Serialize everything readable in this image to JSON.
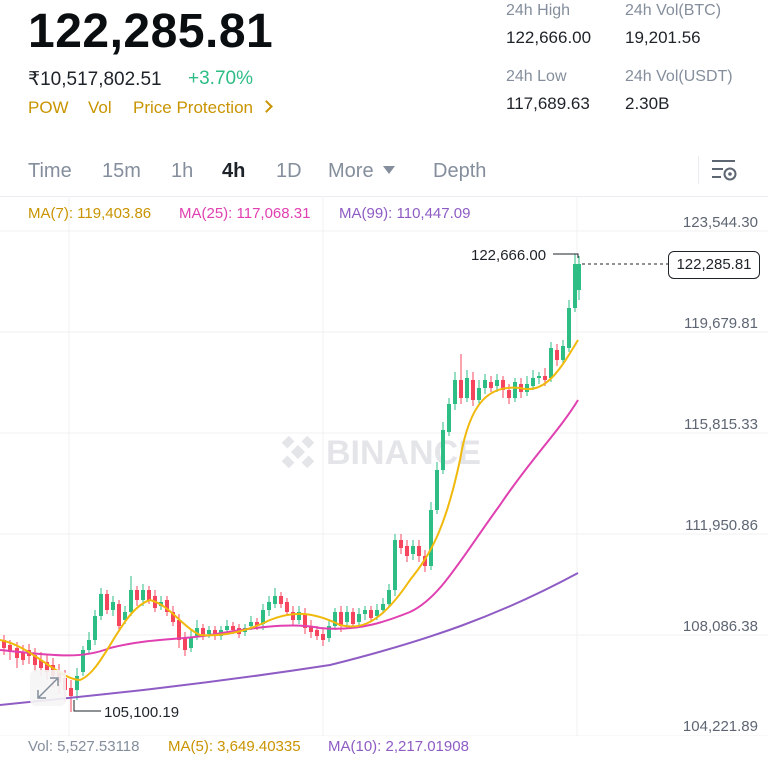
{
  "header": {
    "last_price": "122,285.81",
    "inr_price": "₹10,517,802.51",
    "change_pct": "+3.70%",
    "tags": [
      "POW",
      "Vol",
      "Price Protection"
    ]
  },
  "stats": {
    "high_label": "24h High",
    "high_value": "122,666.00",
    "vol_btc_label": "24h Vol(BTC)",
    "vol_btc_value": "19,201.56",
    "low_label": "24h Low",
    "low_value": "117,689.63",
    "vol_usdt_label": "24h Vol(USDT)",
    "vol_usdt_value": "2.30B"
  },
  "tabs": {
    "time": "Time",
    "m15": "15m",
    "h1": "1h",
    "h4": "4h",
    "d1": "1D",
    "more": "More",
    "depth": "Depth"
  },
  "ma_legend": {
    "ma7": "MA(7): 119,403.86",
    "ma25": "MA(25): 117,068.31",
    "ma99": "MA(99): 110,447.09"
  },
  "axis": {
    "ticks": [
      "123,544.30",
      "119,679.81",
      "115,815.33",
      "111,950.86",
      "108,086.38",
      "104,221.89"
    ],
    "current_price": "122,285.81",
    "high_marker": "122,666.00",
    "low_marker": "105,100.19"
  },
  "watermark": "BINANCE",
  "volume_legend": {
    "vol": "Vol: 5,527.53118",
    "ma5": "MA(5): 3,649.40335",
    "ma10": "MA(10): 2,217.01908"
  },
  "colors": {
    "up": "#2ebd85",
    "down": "#f6465d",
    "ma7": "#f0b90b",
    "ma25": "#e040b0",
    "ma99": "#8e5cc4",
    "accent": "#c99400"
  }
}
